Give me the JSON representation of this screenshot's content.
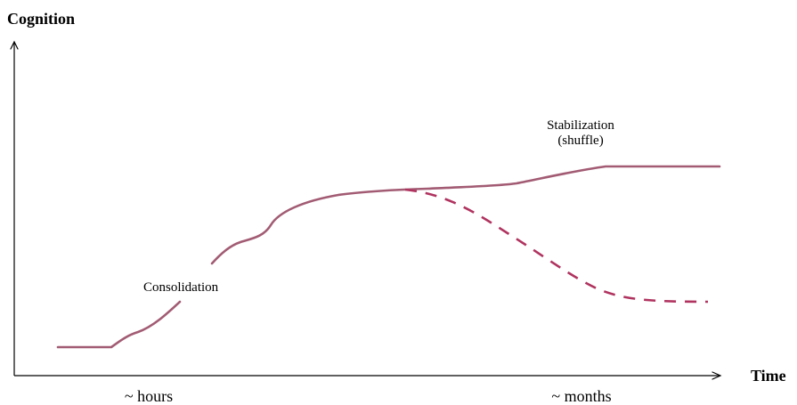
{
  "axes": {
    "y_label": "Cognition",
    "x_label": "Time"
  },
  "annotations": {
    "consolidation": "Consolidation",
    "stabilization_line1": "Stabilization",
    "stabilization_line2": "(shuffle)"
  },
  "time_labels": {
    "left": "~ hours",
    "right": "~ months"
  },
  "colors": {
    "solid_curve": "#a25b73",
    "dashed_curve": "#b0335f",
    "axes": "#000000"
  }
}
